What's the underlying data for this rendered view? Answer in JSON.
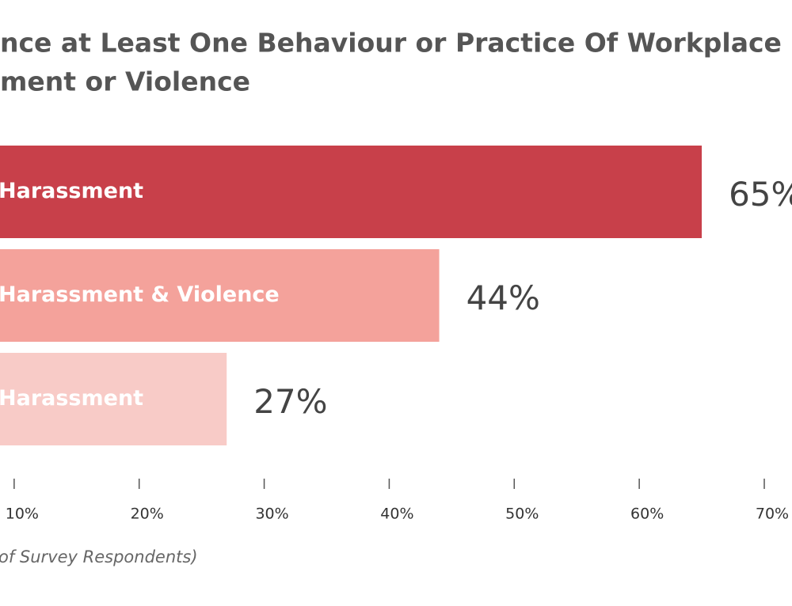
{
  "chart_data": {
    "type": "barh",
    "title": [
      "nce at Least One Behaviour or Practice Of Workplace",
      "ment or Violence"
    ],
    "categories": [
      "Harassment",
      "Harassment & Violence",
      "Harassment"
    ],
    "values": [
      65,
      44,
      27
    ],
    "value_labels": [
      "65%",
      "44%",
      "27%"
    ],
    "colors": [
      "#c8404a",
      "#f4a29b",
      "#f8cbc7"
    ],
    "xlim": [
      0,
      70
    ],
    "xticks": [
      {
        "value": 10,
        "label": "10%"
      },
      {
        "value": 20,
        "label": "20%"
      },
      {
        "value": 30,
        "label": "30%"
      },
      {
        "value": 40,
        "label": "40%"
      },
      {
        "value": 50,
        "label": "50%"
      },
      {
        "value": 60,
        "label": "60%"
      },
      {
        "value": 70,
        "label": "70%"
      }
    ],
    "xlabel": "of Survey Respondents)"
  }
}
